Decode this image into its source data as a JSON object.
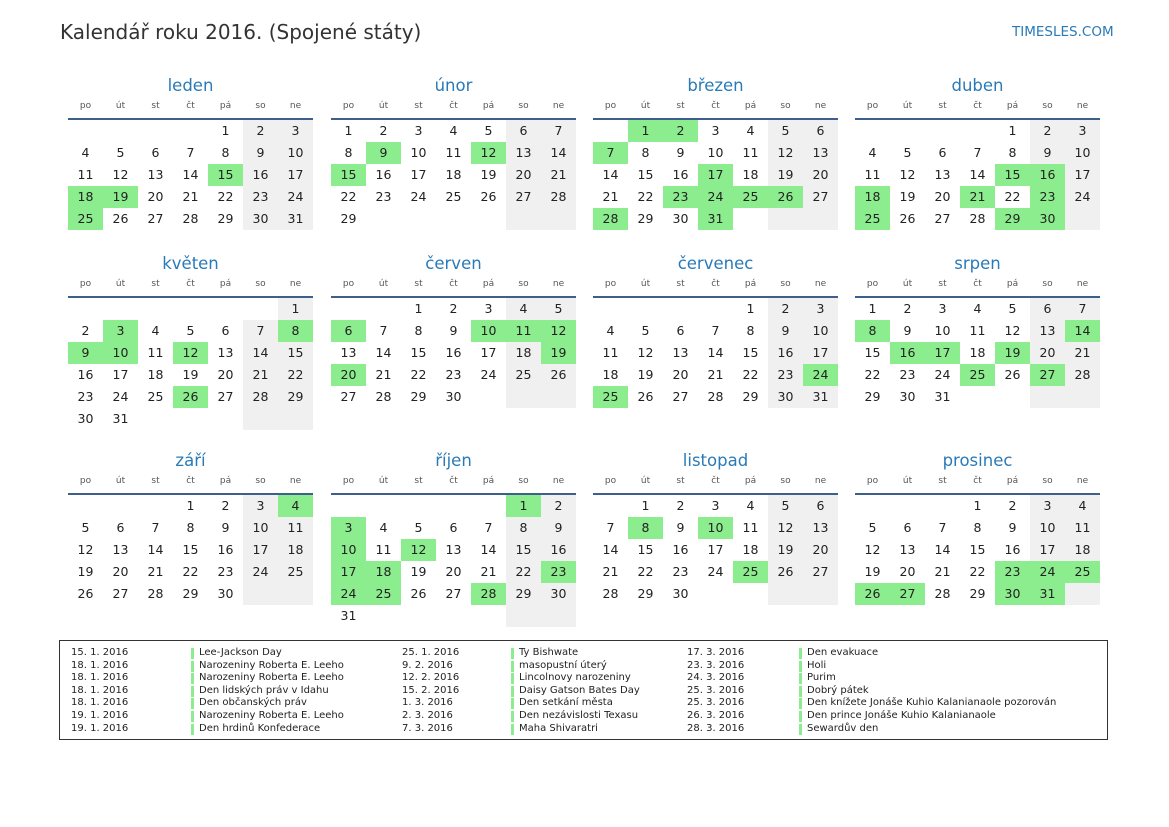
{
  "title": "Kalendář roku 2016. (Spojené státy)",
  "brand": "TIMESLES.COM",
  "year": 2016,
  "weekday_labels": [
    "po",
    "út",
    "st",
    "čt",
    "pá",
    "so",
    "ne"
  ],
  "colors": {
    "accent": "#2a7ab8",
    "holiday": "#8ced8e",
    "weekend": "#f0f0f0",
    "rule": "#3d5f8c"
  },
  "months": [
    {
      "name": "leden",
      "holidays": [
        15,
        18,
        19,
        25
      ]
    },
    {
      "name": "únor",
      "holidays": [
        9,
        12,
        15
      ]
    },
    {
      "name": "březen",
      "holidays": [
        1,
        2,
        7,
        17,
        23,
        24,
        25,
        26,
        28,
        31
      ]
    },
    {
      "name": "duben",
      "holidays": [
        15,
        16,
        18,
        21,
        23,
        25,
        29,
        30
      ]
    },
    {
      "name": "květen",
      "holidays": [
        3,
        8,
        9,
        10,
        12,
        26
      ]
    },
    {
      "name": "červen",
      "holidays": [
        6,
        10,
        11,
        12,
        19,
        20
      ]
    },
    {
      "name": "červenec",
      "holidays": [
        24,
        25
      ]
    },
    {
      "name": "srpen",
      "holidays": [
        8,
        14,
        16,
        17,
        19,
        25,
        27
      ]
    },
    {
      "name": "září",
      "holidays": [
        4
      ]
    },
    {
      "name": "říjen",
      "holidays": [
        1,
        3,
        10,
        12,
        17,
        18,
        23,
        24,
        25,
        28
      ]
    },
    {
      "name": "listopad",
      "holidays": [
        8,
        10,
        25
      ]
    },
    {
      "name": "prosinec",
      "holidays": [
        23,
        24,
        25,
        26,
        27,
        30,
        31
      ]
    }
  ],
  "legend": [
    [
      {
        "date": "15. 1. 2016",
        "name": "Lee-Jackson Day"
      },
      {
        "date": "18. 1. 2016",
        "name": "Narozeniny Roberta E. Leeho"
      },
      {
        "date": "18. 1. 2016",
        "name": "Narozeniny Roberta E. Leeho"
      },
      {
        "date": "18. 1. 2016",
        "name": "Den lidských práv v Idahu"
      },
      {
        "date": "18. 1. 2016",
        "name": "Den občanských práv"
      },
      {
        "date": "19. 1. 2016",
        "name": "Narozeniny Roberta E. Leeho"
      },
      {
        "date": "19. 1. 2016",
        "name": "Den hrdinů Konfederace"
      }
    ],
    [
      {
        "date": "25. 1. 2016",
        "name": "Ty Bishwate"
      },
      {
        "date": "9. 2. 2016",
        "name": "masopustní úterý"
      },
      {
        "date": "12. 2. 2016",
        "name": "Lincolnovy narozeniny"
      },
      {
        "date": "15. 2. 2016",
        "name": "Daisy Gatson Bates Day"
      },
      {
        "date": "1. 3. 2016",
        "name": "Den setkání města"
      },
      {
        "date": "2. 3. 2016",
        "name": "Den nezávislosti Texasu"
      },
      {
        "date": "7. 3. 2016",
        "name": "Maha Shivaratri"
      }
    ],
    [
      {
        "date": "17. 3. 2016",
        "name": "Den evakuace"
      },
      {
        "date": "23. 3. 2016",
        "name": "Holi"
      },
      {
        "date": "24. 3. 2016",
        "name": "Purim"
      },
      {
        "date": "25. 3. 2016",
        "name": "Dobrý pátek"
      },
      {
        "date": "25. 3. 2016",
        "name": "Den knížete Jonáše Kuhio Kalanianaole pozorován"
      },
      {
        "date": "26. 3. 2016",
        "name": "Den prince Jonáše Kuhio Kalanianaole"
      },
      {
        "date": "28. 3. 2016",
        "name": "Sewardův den"
      }
    ]
  ]
}
